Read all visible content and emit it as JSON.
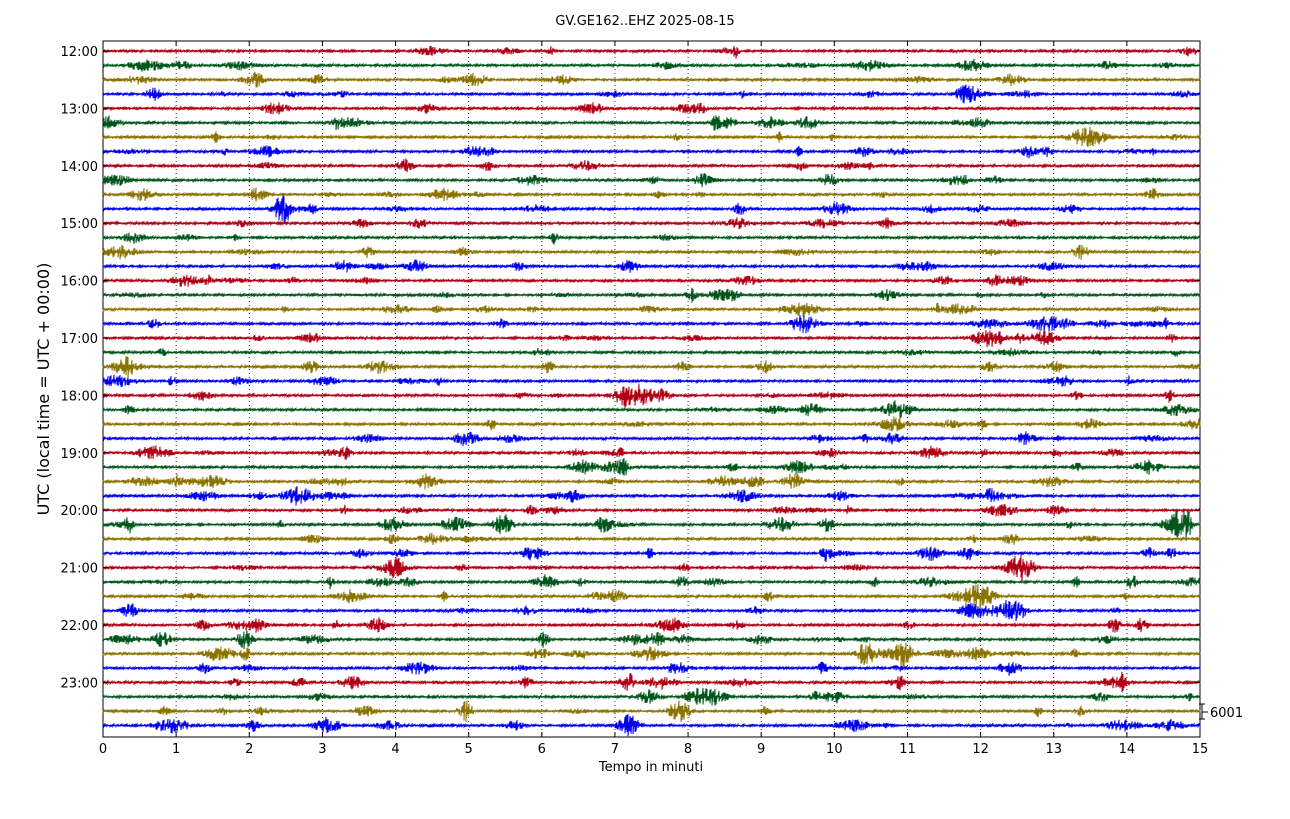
{
  "chart_data": {
    "type": "line",
    "title": "GV.GE162..EHZ 2025-08-15",
    "xlabel": "Tempo in minuti",
    "ylabel": "UTC (local time = UTC + 00:00)",
    "xlim": [
      0,
      15
    ],
    "x_ticks": [
      "0",
      "1",
      "2",
      "3",
      "4",
      "5",
      "6",
      "7",
      "8",
      "9",
      "10",
      "11",
      "12",
      "13",
      "14",
      "15"
    ],
    "y_ticks": [
      "12:00",
      "13:00",
      "14:00",
      "15:00",
      "16:00",
      "17:00",
      "18:00",
      "19:00",
      "20:00",
      "21:00",
      "22:00",
      "23:00"
    ],
    "grid": true,
    "scale_label": "6001",
    "row_minutes": 15,
    "start_hour": "12:00",
    "rows": 48,
    "color_cycle": [
      "#b00016",
      "#00561b",
      "#8a7300",
      "#0000ee"
    ]
  }
}
